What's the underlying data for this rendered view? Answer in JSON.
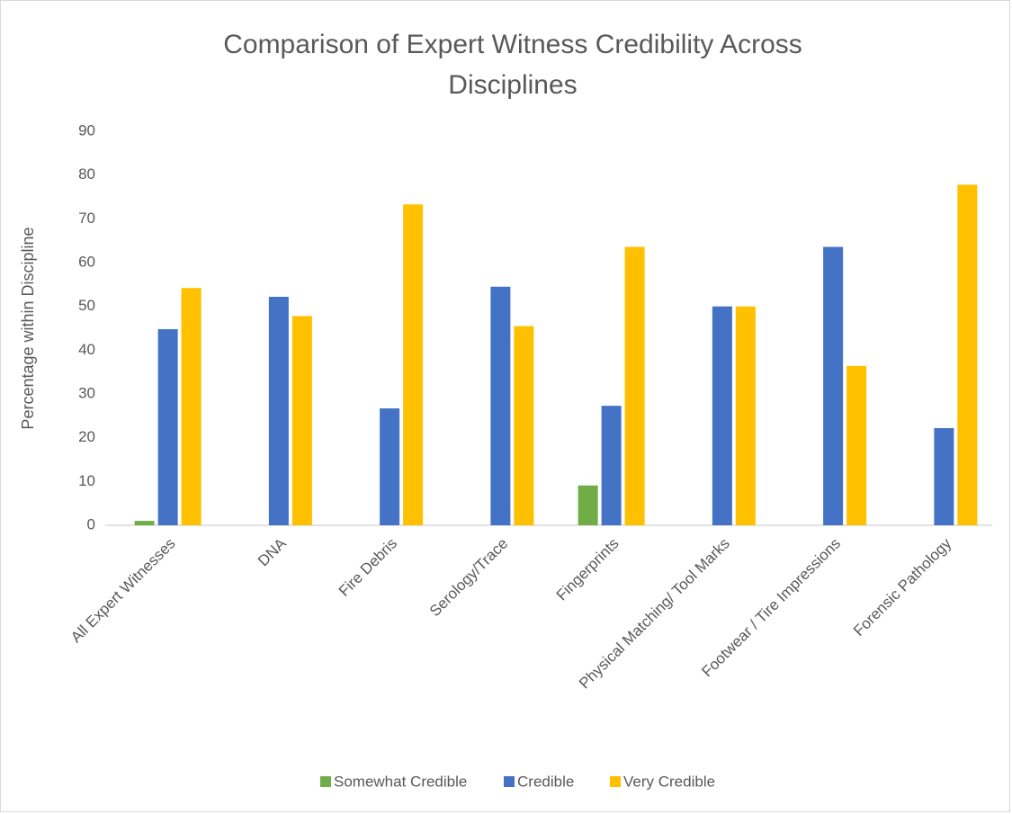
{
  "chart_data": {
    "type": "bar",
    "title": [
      "Comparison of Expert Witness Credibility Across",
      "Disciplines"
    ],
    "y_label": "Percentage within Discipline",
    "categories": [
      "All Expert Witnesses",
      "DNA",
      "Fire Debris",
      "Serology/Trace",
      "Fingerprints",
      "Physical Matching/ Tool Marks",
      "Footwear / Tire Impressions",
      "Forensic Pathology"
    ],
    "series": [
      {
        "name": "Somewhat Credible",
        "color": "#70ad47",
        "values": [
          1,
          0,
          0,
          0,
          9.1,
          0,
          0,
          0
        ]
      },
      {
        "name": "Credible",
        "color": "#4472c4",
        "values": [
          44.8,
          52.2,
          26.7,
          54.5,
          27.3,
          50,
          63.6,
          22.2
        ]
      },
      {
        "name": "Very Credible",
        "color": "#ffc000",
        "values": [
          54.2,
          47.8,
          73.3,
          45.5,
          63.6,
          50,
          36.4,
          77.8
        ]
      }
    ],
    "ylim": [
      0,
      90
    ],
    "yticks": [
      0,
      10,
      20,
      30,
      40,
      50,
      60,
      70,
      80,
      90
    ],
    "grid": false,
    "legend": "bottom"
  }
}
